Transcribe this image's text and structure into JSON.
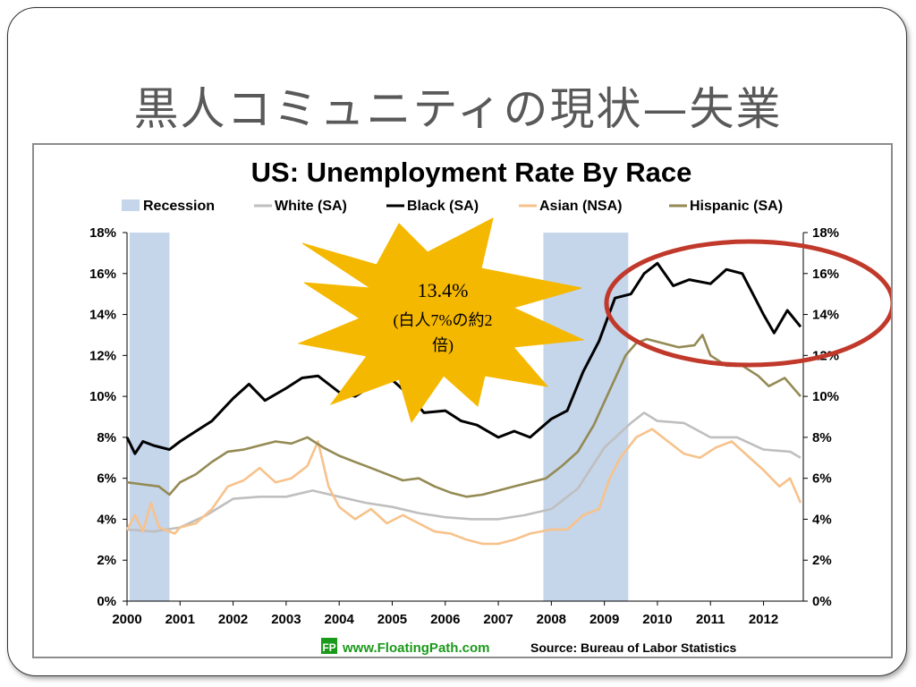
{
  "slide": {
    "title": "黒人コミュニティの現状—失業"
  },
  "chart_data": {
    "type": "line",
    "title": "US: Unemployment Rate By Race",
    "legend_position": "top",
    "xlabel": "",
    "ylabel": "",
    "x_range": [
      2000,
      2012.75
    ],
    "ylim": [
      0,
      18
    ],
    "y_ticks": [
      "0%",
      "2%",
      "4%",
      "6%",
      "8%",
      "10%",
      "12%",
      "14%",
      "16%",
      "18%"
    ],
    "x_ticks": [
      "2000",
      "2001",
      "2002",
      "2003",
      "2004",
      "2005",
      "2006",
      "2007",
      "2008",
      "2009",
      "2010",
      "2011",
      "2012"
    ],
    "grid": false,
    "recessions": [
      {
        "name": "Recession",
        "start": 2000.05,
        "end": 2000.8
      },
      {
        "name": "Recession",
        "start": 2007.85,
        "end": 2009.45
      }
    ],
    "recession_label": "Recession",
    "recession_color": "#c5d5ea",
    "series": [
      {
        "name": "White (SA)",
        "color": "#bfbfbf",
        "points": [
          [
            2000.0,
            3.5
          ],
          [
            2000.5,
            3.4
          ],
          [
            2001.0,
            3.6
          ],
          [
            2001.5,
            4.2
          ],
          [
            2002.0,
            5.0
          ],
          [
            2002.5,
            5.1
          ],
          [
            2003.0,
            5.1
          ],
          [
            2003.5,
            5.4
          ],
          [
            2004.0,
            5.1
          ],
          [
            2004.5,
            4.8
          ],
          [
            2005.0,
            4.6
          ],
          [
            2005.5,
            4.3
          ],
          [
            2006.0,
            4.1
          ],
          [
            2006.5,
            4.0
          ],
          [
            2007.0,
            4.0
          ],
          [
            2007.5,
            4.2
          ],
          [
            2008.0,
            4.5
          ],
          [
            2008.5,
            5.5
          ],
          [
            2009.0,
            7.5
          ],
          [
            2009.5,
            8.7
          ],
          [
            2009.75,
            9.2
          ],
          [
            2010.0,
            8.8
          ],
          [
            2010.5,
            8.7
          ],
          [
            2011.0,
            8.0
          ],
          [
            2011.5,
            8.0
          ],
          [
            2012.0,
            7.4
          ],
          [
            2012.5,
            7.3
          ],
          [
            2012.7,
            7.0
          ]
        ]
      },
      {
        "name": "Black (SA)",
        "color": "#000000",
        "points": [
          [
            2000.0,
            8.0
          ],
          [
            2000.15,
            7.2
          ],
          [
            2000.3,
            7.8
          ],
          [
            2000.5,
            7.6
          ],
          [
            2000.8,
            7.4
          ],
          [
            2001.0,
            7.8
          ],
          [
            2001.3,
            8.3
          ],
          [
            2001.6,
            8.8
          ],
          [
            2002.0,
            9.9
          ],
          [
            2002.3,
            10.6
          ],
          [
            2002.6,
            9.8
          ],
          [
            2003.0,
            10.4
          ],
          [
            2003.3,
            10.9
          ],
          [
            2003.6,
            11.0
          ],
          [
            2004.0,
            10.2
          ],
          [
            2004.3,
            10.0
          ],
          [
            2004.6,
            10.5
          ],
          [
            2005.0,
            10.8
          ],
          [
            2005.3,
            10.1
          ],
          [
            2005.6,
            9.2
          ],
          [
            2006.0,
            9.3
          ],
          [
            2006.3,
            8.8
          ],
          [
            2006.6,
            8.6
          ],
          [
            2007.0,
            8.0
          ],
          [
            2007.3,
            8.3
          ],
          [
            2007.6,
            8.0
          ],
          [
            2008.0,
            8.9
          ],
          [
            2008.3,
            9.3
          ],
          [
            2008.6,
            11.2
          ],
          [
            2008.9,
            12.7
          ],
          [
            2009.2,
            14.8
          ],
          [
            2009.5,
            15.0
          ],
          [
            2009.75,
            16.0
          ],
          [
            2010.0,
            16.5
          ],
          [
            2010.3,
            15.4
          ],
          [
            2010.6,
            15.7
          ],
          [
            2011.0,
            15.5
          ],
          [
            2011.3,
            16.2
          ],
          [
            2011.6,
            16.0
          ],
          [
            2011.8,
            15.0
          ],
          [
            2012.0,
            14.0
          ],
          [
            2012.2,
            13.1
          ],
          [
            2012.45,
            14.2
          ],
          [
            2012.7,
            13.4
          ]
        ]
      },
      {
        "name": "Asian (NSA)",
        "color": "#f7c28b",
        "points": [
          [
            2000.0,
            3.5
          ],
          [
            2000.15,
            4.2
          ],
          [
            2000.3,
            3.4
          ],
          [
            2000.45,
            4.8
          ],
          [
            2000.6,
            3.6
          ],
          [
            2000.9,
            3.3
          ],
          [
            2001.0,
            3.6
          ],
          [
            2001.3,
            3.8
          ],
          [
            2001.6,
            4.5
          ],
          [
            2001.9,
            5.6
          ],
          [
            2002.2,
            5.9
          ],
          [
            2002.5,
            6.5
          ],
          [
            2002.8,
            5.8
          ],
          [
            2003.1,
            6.0
          ],
          [
            2003.4,
            6.6
          ],
          [
            2003.6,
            7.8
          ],
          [
            2003.8,
            5.6
          ],
          [
            2004.0,
            4.6
          ],
          [
            2004.3,
            4.0
          ],
          [
            2004.6,
            4.5
          ],
          [
            2004.9,
            3.8
          ],
          [
            2005.2,
            4.2
          ],
          [
            2005.5,
            3.8
          ],
          [
            2005.8,
            3.4
          ],
          [
            2006.1,
            3.3
          ],
          [
            2006.4,
            3.0
          ],
          [
            2006.7,
            2.8
          ],
          [
            2007.0,
            2.8
          ],
          [
            2007.3,
            3.0
          ],
          [
            2007.6,
            3.3
          ],
          [
            2008.0,
            3.5
          ],
          [
            2008.3,
            3.5
          ],
          [
            2008.6,
            4.2
          ],
          [
            2008.9,
            4.5
          ],
          [
            2009.1,
            6.0
          ],
          [
            2009.3,
            7.0
          ],
          [
            2009.6,
            8.0
          ],
          [
            2009.9,
            8.4
          ],
          [
            2010.2,
            7.8
          ],
          [
            2010.5,
            7.2
          ],
          [
            2010.8,
            7.0
          ],
          [
            2011.1,
            7.5
          ],
          [
            2011.4,
            7.8
          ],
          [
            2011.7,
            7.1
          ],
          [
            2012.0,
            6.4
          ],
          [
            2012.3,
            5.6
          ],
          [
            2012.5,
            6.0
          ],
          [
            2012.7,
            4.8
          ]
        ]
      },
      {
        "name": "Hispanic (SA)",
        "color": "#948a54",
        "points": [
          [
            2000.0,
            5.8
          ],
          [
            2000.3,
            5.7
          ],
          [
            2000.6,
            5.6
          ],
          [
            2000.8,
            5.2
          ],
          [
            2001.0,
            5.8
          ],
          [
            2001.3,
            6.2
          ],
          [
            2001.6,
            6.8
          ],
          [
            2001.9,
            7.3
          ],
          [
            2002.2,
            7.4
          ],
          [
            2002.5,
            7.6
          ],
          [
            2002.8,
            7.8
          ],
          [
            2003.1,
            7.7
          ],
          [
            2003.4,
            8.0
          ],
          [
            2003.7,
            7.5
          ],
          [
            2004.0,
            7.1
          ],
          [
            2004.3,
            6.8
          ],
          [
            2004.6,
            6.5
          ],
          [
            2004.9,
            6.2
          ],
          [
            2005.2,
            5.9
          ],
          [
            2005.5,
            6.0
          ],
          [
            2005.8,
            5.6
          ],
          [
            2006.1,
            5.3
          ],
          [
            2006.4,
            5.1
          ],
          [
            2006.7,
            5.2
          ],
          [
            2007.0,
            5.4
          ],
          [
            2007.3,
            5.6
          ],
          [
            2007.6,
            5.8
          ],
          [
            2007.9,
            6.0
          ],
          [
            2008.2,
            6.6
          ],
          [
            2008.5,
            7.3
          ],
          [
            2008.8,
            8.6
          ],
          [
            2009.1,
            10.3
          ],
          [
            2009.4,
            12.0
          ],
          [
            2009.6,
            12.6
          ],
          [
            2009.8,
            12.8
          ],
          [
            2010.1,
            12.6
          ],
          [
            2010.4,
            12.4
          ],
          [
            2010.7,
            12.5
          ],
          [
            2010.85,
            13.0
          ],
          [
            2011.0,
            12.0
          ],
          [
            2011.3,
            11.5
          ],
          [
            2011.6,
            11.5
          ],
          [
            2011.9,
            11.0
          ],
          [
            2012.1,
            10.5
          ],
          [
            2012.4,
            10.9
          ],
          [
            2012.7,
            10.0
          ]
        ]
      }
    ]
  },
  "callout": {
    "value": "13.4%",
    "line2": "(白人7%の約2",
    "line3": "倍)"
  },
  "footer": {
    "site": "www.FloatingPath.com",
    "source": "Source: Bureau of Labor Statistics",
    "logo_letters": "FP"
  }
}
